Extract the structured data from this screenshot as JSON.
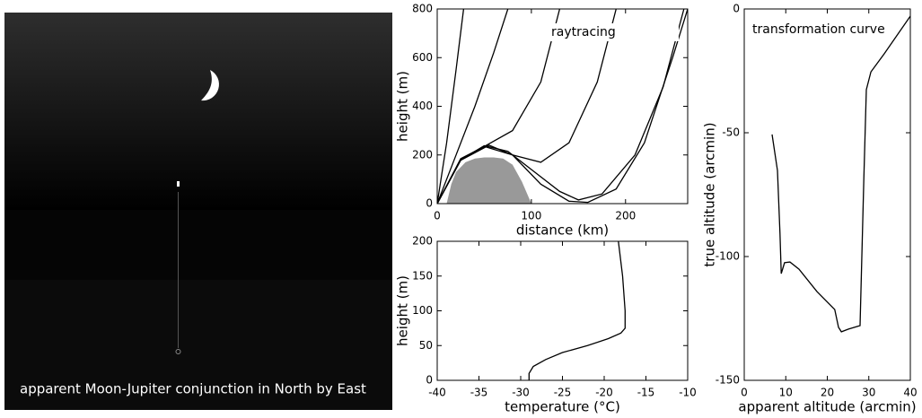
{
  "image": {
    "caption": "apparent Moon-Jupiter conjunction in North by East"
  },
  "chart_data": [
    {
      "type": "line",
      "annotation": "raytracing",
      "x_label": "distance (km)",
      "y_label": "height (m)",
      "xlim": [
        0,
        266
      ],
      "ylim": [
        0,
        800
      ],
      "xticks": [
        0,
        100,
        200
      ],
      "yticks": [
        0,
        200,
        400,
        600,
        800
      ],
      "series": [
        {
          "color": "#999999",
          "fill": "#999999",
          "x": [
            10,
            15,
            20,
            30,
            40,
            50,
            60,
            70,
            80,
            90,
            100
          ],
          "values": [
            0,
            80,
            130,
            170,
            185,
            190,
            190,
            185,
            160,
            90,
            0
          ]
        },
        {
          "color": "#000000",
          "x": [
            0,
            10,
            20,
            28
          ],
          "values": [
            0,
            250,
            550,
            800
          ]
        },
        {
          "color": "#000000",
          "x": [
            0,
            20,
            40,
            60,
            75
          ],
          "values": [
            0,
            200,
            400,
            620,
            800
          ]
        },
        {
          "color": "#000000",
          "x": [
            0,
            25,
            50,
            80,
            110,
            130
          ],
          "values": [
            0,
            185,
            235,
            300,
            500,
            800
          ]
        },
        {
          "color": "#000000",
          "x": [
            0,
            25,
            50,
            80,
            110,
            140,
            170,
            190
          ],
          "values": [
            0,
            180,
            235,
            200,
            170,
            250,
            500,
            800
          ]
        },
        {
          "color": "#000000",
          "x": [
            0,
            25,
            50,
            75,
            100,
            130,
            150,
            175,
            210,
            240,
            262
          ],
          "values": [
            0,
            180,
            238,
            215,
            140,
            50,
            15,
            40,
            200,
            480,
            800
          ]
        },
        {
          "color": "#000000",
          "x": [
            0,
            25,
            55,
            80,
            110,
            140,
            160,
            190,
            220,
            250,
            266
          ],
          "values": [
            0,
            178,
            240,
            200,
            80,
            10,
            5,
            60,
            250,
            600,
            800
          ]
        }
      ]
    },
    {
      "type": "line",
      "x_label": "temperature (°C)",
      "y_label": "height (m)",
      "xlim": [
        -40,
        -10
      ],
      "ylim": [
        0,
        200
      ],
      "xticks": [
        -40,
        -35,
        -30,
        -25,
        -20,
        -15,
        -10
      ],
      "yticks": [
        0,
        50,
        100,
        150,
        200
      ],
      "series": [
        {
          "color": "#000000",
          "x": [
            -29,
            -29,
            -28.5,
            -27,
            -25,
            -22,
            -19.5,
            -18,
            -17.5,
            -17.5,
            -17.8,
            -18.3
          ],
          "values": [
            0,
            10,
            20,
            30,
            40,
            50,
            60,
            68,
            75,
            100,
            150,
            200
          ]
        }
      ]
    },
    {
      "type": "line",
      "annotation": "transformation curve",
      "x_label": "apparent altitude (arcmin)",
      "y_label": "true altitude (arcmin)",
      "xlim": [
        0,
        40
      ],
      "ylim": [
        -150,
        0
      ],
      "xticks": [
        0,
        10,
        20,
        30,
        40
      ],
      "yticks": [
        -150,
        -100,
        -50,
        0
      ],
      "series": [
        {
          "color": "#000000",
          "x": [
            6.7,
            8.0,
            8.6,
            8.9,
            9.7,
            11.0,
            13.2,
            17.5,
            21.8,
            22.7,
            23.4,
            25.1,
            27.9,
            28.8,
            29.4,
            30.5,
            33.7,
            40.0
          ],
          "values": [
            -50.7,
            -65.2,
            -90.6,
            -106.9,
            -102.5,
            -102.2,
            -105.1,
            -114.1,
            -121.4,
            -128.6,
            -130.4,
            -129.3,
            -127.9,
            -68.8,
            -32.6,
            -25.4,
            -18.1,
            -2.9
          ]
        }
      ]
    }
  ]
}
